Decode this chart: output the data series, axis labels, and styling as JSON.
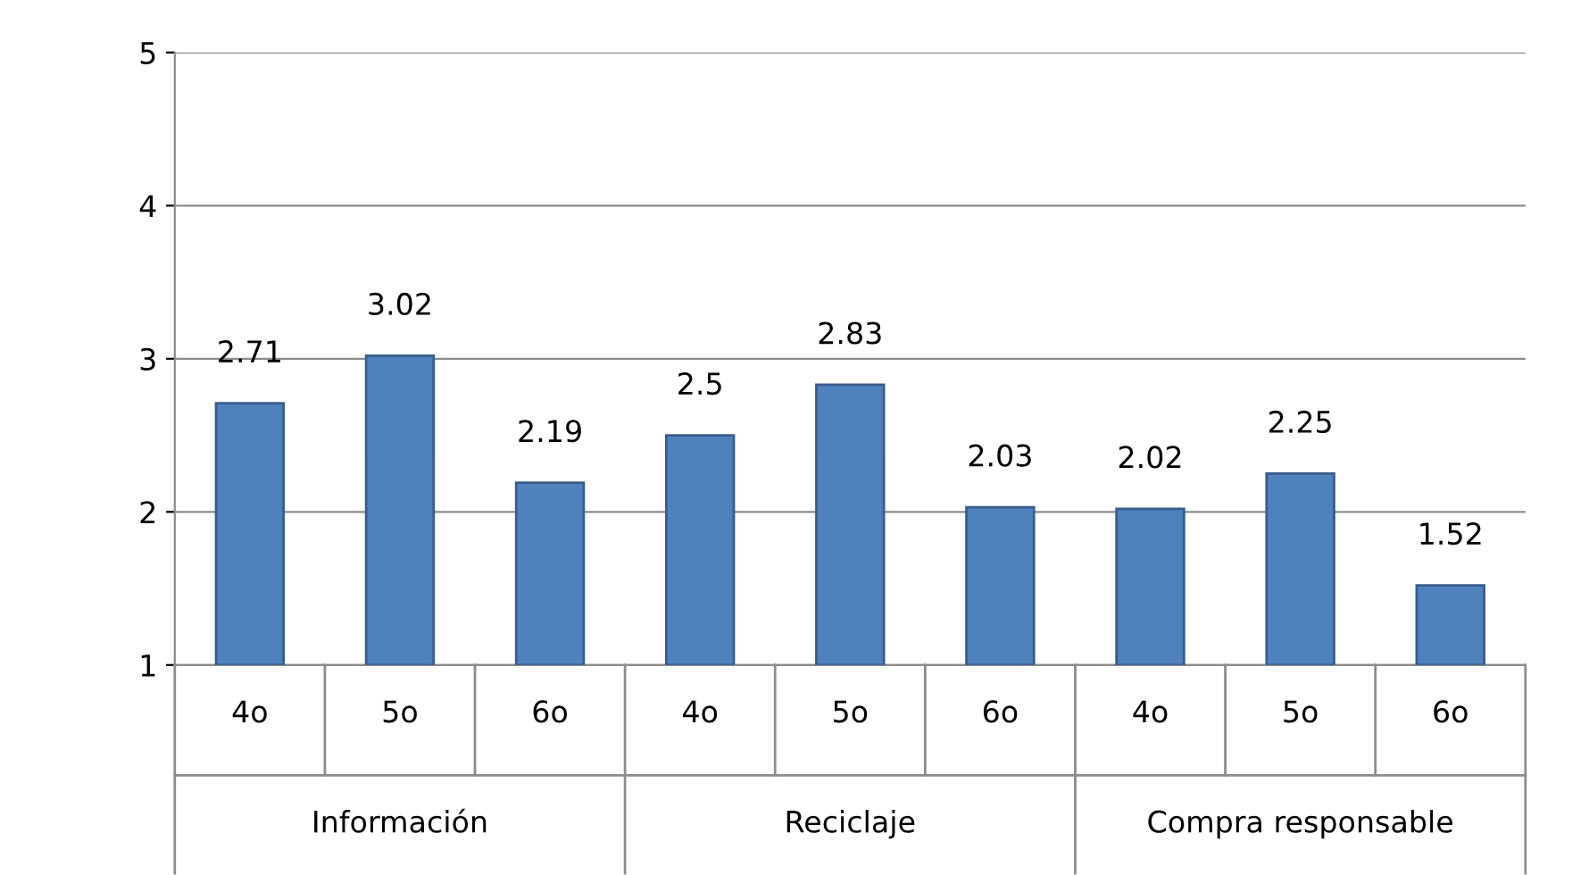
{
  "chart_data": {
    "type": "bar",
    "categories": [
      "4o",
      "5o",
      "6o",
      "4o",
      "5o",
      "6o",
      "4o",
      "5o",
      "6o"
    ],
    "values": [
      2.71,
      3.02,
      2.19,
      2.5,
      2.83,
      2.03,
      2.02,
      2.25,
      1.52
    ],
    "color": "#4f81bd",
    "ylim": [
      1,
      5
    ],
    "yticks": [
      1,
      2,
      3,
      4,
      5
    ],
    "grid": "y",
    "data_labels": true,
    "annotations": [
      "Información",
      "Reciclaje",
      "Compra responsable"
    ]
  }
}
